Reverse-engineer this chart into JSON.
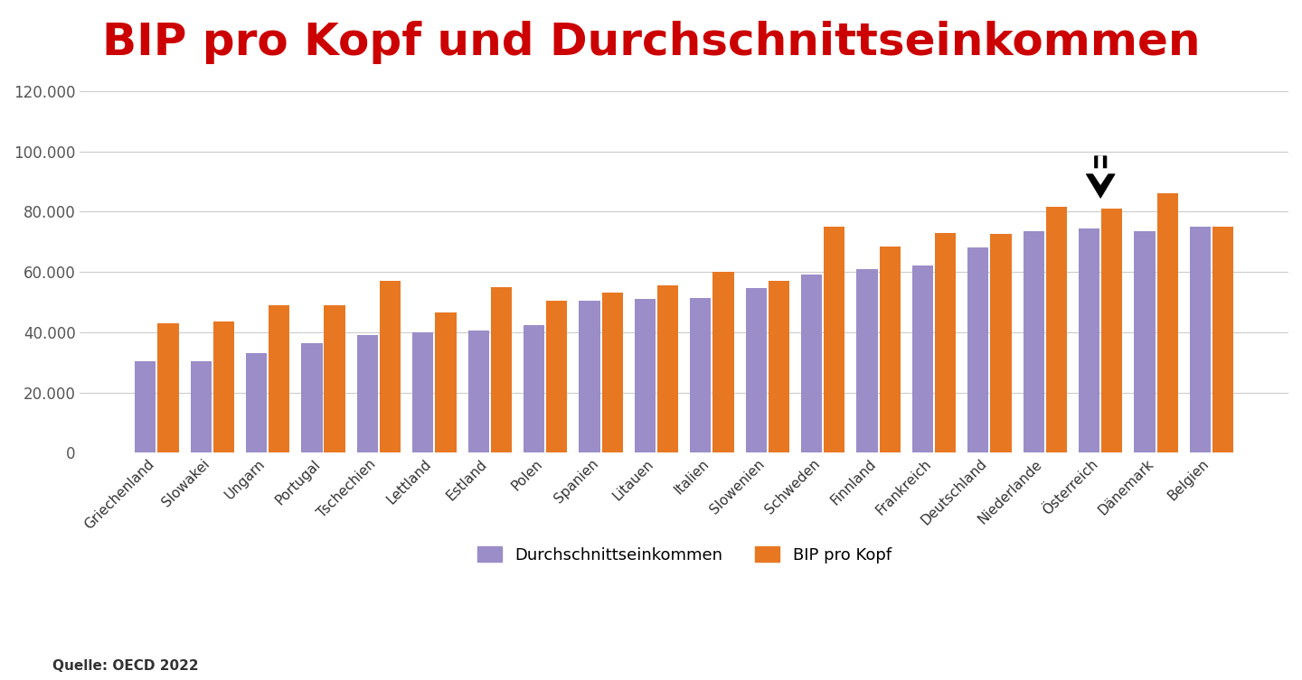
{
  "title": "BIP pro Kopf und Durchschnittseinkommen",
  "title_color": "#cc0000",
  "title_fontsize": 36,
  "background_color": "#ffffff",
  "categories": [
    "Griechenland",
    "Slowakei",
    "Ungarn",
    "Portugal",
    "Tschechien",
    "Lettland",
    "Estland",
    "Polen",
    "Spanien",
    "Litauen",
    "Italien",
    "Slowenien",
    "Schweden",
    "Finnland",
    "Frankreich",
    "Deutschland",
    "Niederlande",
    "Österreich",
    "Dänemark",
    "Belgien"
  ],
  "durchschnittseinkommen": [
    30500,
    30500,
    33000,
    36500,
    39000,
    40000,
    40500,
    42500,
    50500,
    51000,
    51500,
    54500,
    59000,
    61000,
    62000,
    68000,
    73500,
    74500,
    73500,
    75000
  ],
  "bip_pro_kopf": [
    43000,
    43500,
    49000,
    49000,
    57000,
    46500,
    55000,
    50500,
    53000,
    55500,
    60000,
    57000,
    75000,
    68500,
    73000,
    72500,
    81500,
    81000,
    86000,
    75000
  ],
  "color_durchschnitt": "#9b8dc8",
  "color_bip": "#e87722",
  "ylabel_ticks": [
    0,
    20000,
    40000,
    60000,
    80000,
    100000,
    120000
  ],
  "ylabel_labels": [
    "0",
    "20.000",
    "40.000",
    "60.000",
    "80.000",
    "100.000",
    "120.000"
  ],
  "legend_labels": [
    "Durchschnittseinkommen",
    "BIP pro Kopf"
  ],
  "source_text": "Quelle: OECD 2022",
  "arrow_country_index": 17,
  "ylim": [
    0,
    130000
  ]
}
